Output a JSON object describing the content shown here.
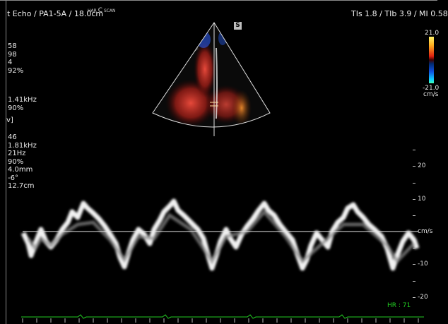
{
  "header": {
    "title": "t Echo / PA1-5A / 18.0cm",
    "icons": [
      "HAR",
      "C",
      "SCAN"
    ],
    "indices": "TIs  1.8 / TIb  3.9 / MI  0.58"
  },
  "params_2d": [
    "58",
    "98",
    "4",
    "92%"
  ],
  "params_color": [
    "1.41kHz",
    "90%"
  ],
  "params_pw_bracket": "v]",
  "params_pw": [
    "46",
    "1.81kHz",
    "21Hz",
    "90%",
    "4.0mm",
    "-6°",
    "12.7cm"
  ],
  "sector_marker": "S",
  "color_scale": {
    "max": "21.0",
    "min": "-21.0",
    "unit": "cm/s"
  },
  "doppler_scale": {
    "ticks": [
      "20",
      "10",
      "-10",
      "-20"
    ],
    "baseline_unit": "cm/s"
  },
  "heart_rate": "HR : 71",
  "colors": {
    "background": "#000000",
    "baseline": "#e8e8e8",
    "ecg": "#22cc22",
    "sector_outline": "#e0e0e0"
  }
}
